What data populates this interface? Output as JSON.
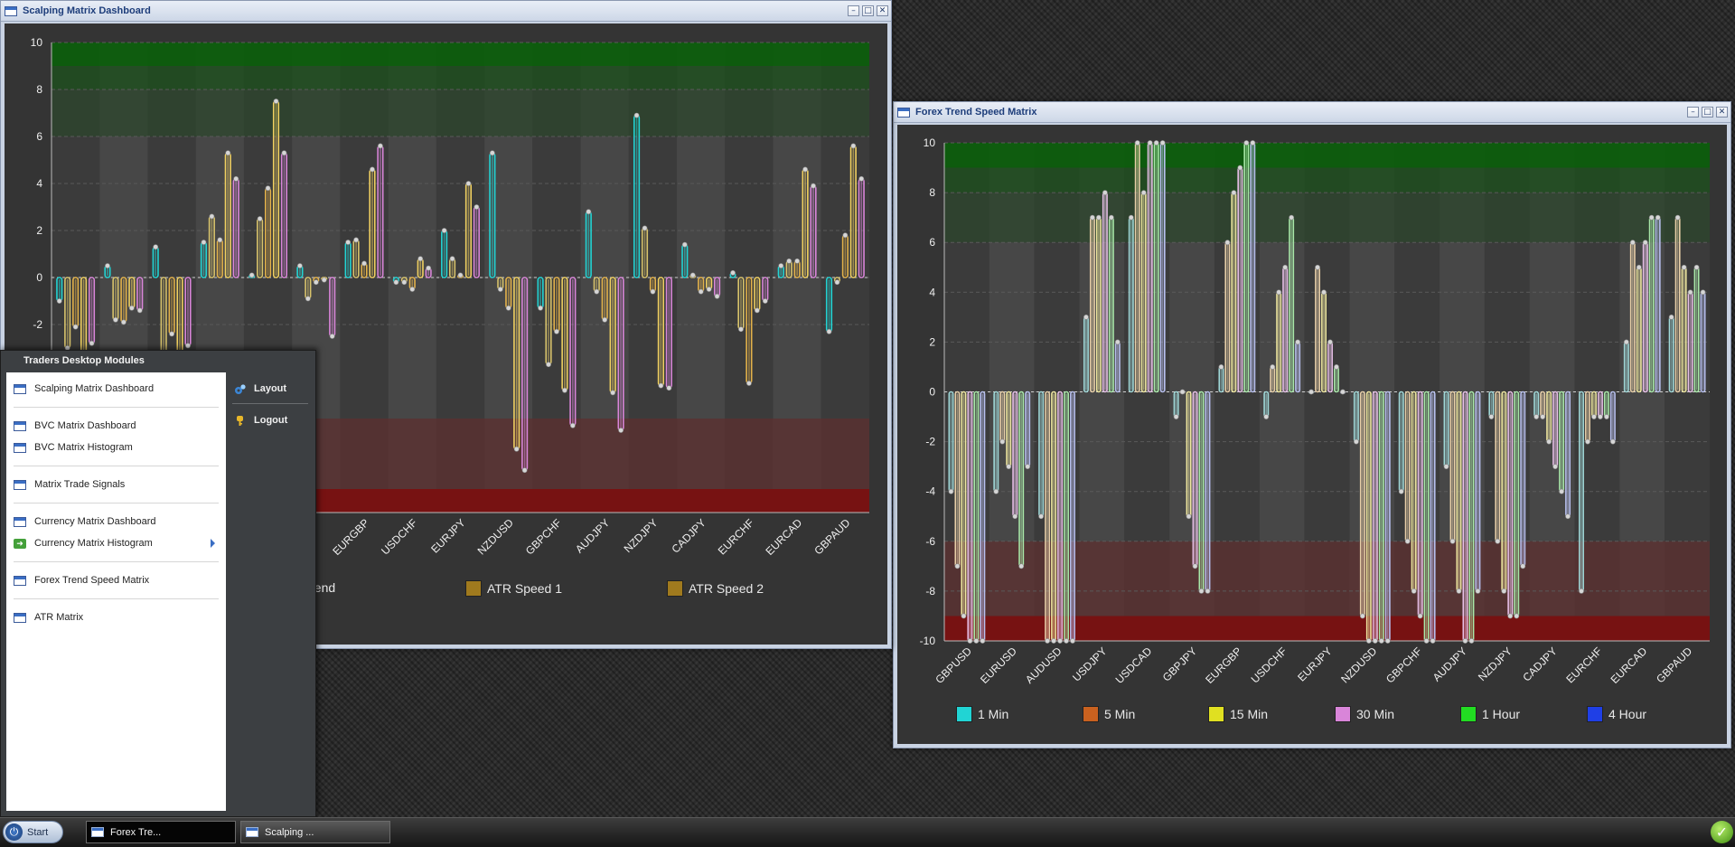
{
  "colors": {
    "zone_green_top": "#0b5e0b",
    "zone_green_mid": "#1d4f1d",
    "zone_green_low": "#2c462c",
    "zone_red_mid": "#5b3131",
    "zone_red_low": "#7a1010",
    "chart_bg": "#343434",
    "band_light": "#474747",
    "band_dark": "#3b3b3b"
  },
  "scalping_window": {
    "title": "Scalping Matrix Dashboard",
    "legend": [
      {
        "label": "ping Trend",
        "color": "#3b3b3b",
        "swatch": false
      },
      {
        "label": "ATR Speed 1",
        "color": "#a07a1e",
        "swatch": true
      },
      {
        "label": "ATR Speed 2",
        "color": "#a07a1e",
        "swatch": true
      }
    ]
  },
  "forex_window": {
    "title": "Forex Trend Speed Matrix",
    "legend": [
      {
        "label": "1 Min",
        "color": "#21d4d4"
      },
      {
        "label": "5 Min",
        "color": "#c9611f"
      },
      {
        "label": "15 Min",
        "color": "#e0e021"
      },
      {
        "label": "30 Min",
        "color": "#d985d9"
      },
      {
        "label": "1 Hour",
        "color": "#22dd22"
      },
      {
        "label": "4 Hour",
        "color": "#1f3fe6"
      }
    ]
  },
  "start_menu": {
    "title": "Traders Desktop Modules",
    "groups": [
      [
        "Scalping Matrix Dashboard"
      ],
      [
        "BVC Matrix Dashboard",
        "BVC Matrix Histogram"
      ],
      [
        "Matrix Trade Signals"
      ],
      [
        "Currency Matrix Dashboard",
        "Currency Matrix Histogram"
      ],
      [
        "Forex Trend Speed Matrix"
      ],
      [
        "ATR Matrix"
      ]
    ],
    "right_items": {
      "layout": "Layout",
      "logout": "Logout"
    }
  },
  "taskbar": {
    "start_label": "Start",
    "buttons": [
      "Forex Tre...",
      "Scalping ..."
    ]
  },
  "chart_data": [
    {
      "type": "bar",
      "title": "Scalping Matrix Dashboard",
      "ylim": [
        -10,
        10
      ],
      "yticks": [
        10,
        8,
        6,
        4,
        2,
        0,
        -2
      ],
      "zones": {
        "green": [
          6,
          10
        ],
        "red": [
          -10,
          -6
        ]
      },
      "categories": [
        "",
        "",
        "",
        "",
        "",
        "",
        "EURGBP",
        "USDCHF",
        "EURJPY",
        "NZDUSD",
        "GBPCHF",
        "AUDJPY",
        "NZDJPY",
        "CADJPY",
        "EURCHF",
        "EURCAD",
        "GBPAUD"
      ],
      "series_colors": [
        "#21d4d4",
        "#d8c36b",
        "#e3b24a",
        "#f0d060",
        "#d985d9",
        "#e8d3a0",
        "#e070e0"
      ],
      "series": [
        {
          "values": [
            -1,
            0.5,
            1.3,
            1.5,
            0.1,
            0.5,
            1.5,
            -0.2,
            2,
            5.3,
            -1.3,
            2.8,
            6.9,
            1.4,
            0.2,
            0.5,
            -2.3
          ]
        },
        {
          "values": [
            -3,
            -1.8,
            -3.2,
            2.6,
            2.5,
            -0.9,
            1.6,
            -0.2,
            0.8,
            -0.5,
            -3.7,
            -0.6,
            2.1,
            0.1,
            -2.2,
            0.7,
            -0.2
          ]
        },
        {
          "values": [
            -2.1,
            -1.9,
            -2.4,
            1.6,
            3.8,
            -0.2,
            0.6,
            -0.5,
            0.1,
            -1.3,
            -2.3,
            -1.8,
            -0.6,
            -0.6,
            -4.5,
            0.7,
            1.8
          ]
        },
        {
          "values": [
            -3.5,
            -1.3,
            -3.8,
            5.3,
            7.5,
            -0.1,
            4.6,
            0.8,
            4,
            -7.3,
            -4.8,
            -4.9,
            -4.6,
            -0.5,
            -1.4,
            4.6,
            5.6
          ]
        },
        {
          "values": [
            -2.8,
            -1.4,
            -2.9,
            4.2,
            5.3,
            -2.5,
            5.6,
            0.4,
            3,
            -8.2,
            -6.3,
            -6.5,
            -4.7,
            -0.8,
            -1,
            3.9,
            4.2
          ]
        }
      ]
    },
    {
      "type": "bar",
      "title": "Forex Trend Speed Matrix",
      "ylim": [
        -10,
        10
      ],
      "yticks": [
        10,
        8,
        6,
        4,
        2,
        0,
        -2,
        -4,
        -6,
        -8,
        -10
      ],
      "zones": {
        "green": [
          6,
          10
        ],
        "red": [
          -10,
          -6
        ]
      },
      "categories": [
        "GBPUSD",
        "EURUSD",
        "AUDUSD",
        "USDJPY",
        "USDCAD",
        "GBPJPY",
        "EURGBP",
        "USDCHF",
        "EURJPY",
        "NZDUSD",
        "GBPCHF",
        "AUDJPY",
        "NZDJPY",
        "CADJPY",
        "EURCHF",
        "EURCAD",
        "GBPAUD"
      ],
      "series": [
        {
          "name": "1 Min",
          "values": [
            -4,
            -4,
            -5,
            3,
            7,
            -1,
            1,
            -1,
            0,
            -2,
            -4,
            -3,
            -1,
            -1,
            -8,
            2,
            3
          ]
        },
        {
          "name": "5 Min",
          "values": [
            -7,
            -2,
            -10,
            7,
            10,
            0,
            6,
            1,
            5,
            -9,
            -6,
            -6,
            -6,
            -1,
            -2,
            6,
            7
          ]
        },
        {
          "name": "15 Min",
          "values": [
            -9,
            -3,
            -10,
            7,
            8,
            -5,
            8,
            4,
            4,
            -10,
            -8,
            -8,
            -8,
            -2,
            -1,
            5,
            5
          ]
        },
        {
          "name": "30 Min",
          "values": [
            -10,
            -5,
            -10,
            8,
            10,
            -7,
            9,
            5,
            2,
            -10,
            -9,
            -10,
            -9,
            -3,
            -1,
            6,
            4
          ]
        },
        {
          "name": "1 Hour",
          "values": [
            -10,
            -7,
            -10,
            7,
            10,
            -8,
            10,
            7,
            1,
            -10,
            -10,
            -10,
            -9,
            -4,
            -1,
            7,
            5
          ]
        },
        {
          "name": "4 Hour",
          "values": [
            -10,
            -3,
            -10,
            2,
            10,
            -8,
            10,
            2,
            0,
            -10,
            -10,
            -8,
            -7,
            -5,
            -2,
            7,
            4
          ]
        }
      ]
    }
  ]
}
